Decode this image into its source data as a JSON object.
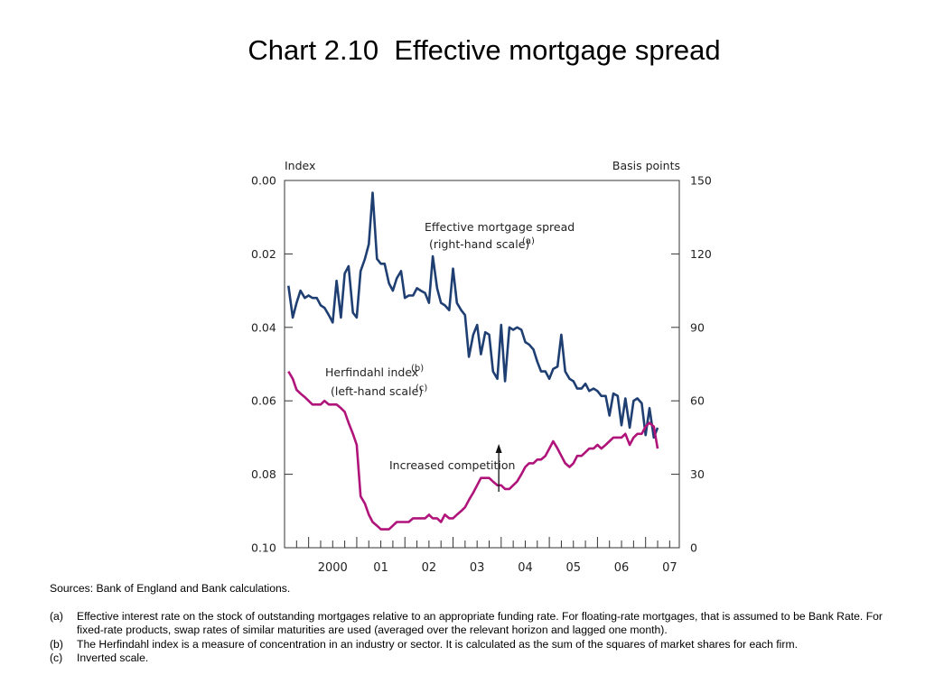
{
  "title": "Chart 2.10  Effective mortgage spread",
  "chart_data": {
    "type": "line",
    "left_axis": {
      "label": "Index",
      "range": [
        0.0,
        0.1
      ],
      "inverted": true,
      "ticks": [
        "0.00",
        "0.02",
        "0.04",
        "0.06",
        "0.08",
        "0.10"
      ]
    },
    "right_axis": {
      "label": "Basis points",
      "range": [
        0,
        150
      ],
      "ticks": [
        "150",
        "120",
        "90",
        "60",
        "30",
        "0"
      ]
    },
    "x_axis": {
      "range": [
        1999.5,
        2007.7
      ],
      "ticks": [
        "2000",
        "01",
        "02",
        "03",
        "04",
        "05",
        "06",
        "07"
      ]
    },
    "grid": false,
    "colors": {
      "spread": "#1f3f73",
      "herfindahl": "#b0147a"
    },
    "series": [
      {
        "name": "Effective mortgage spread (right-hand scale)(a)",
        "axis": "right",
        "x": [
          1999.58,
          1999.67,
          1999.75,
          1999.83,
          1999.92,
          2000.0,
          2000.08,
          2000.17,
          2000.25,
          2000.33,
          2000.42,
          2000.5,
          2000.58,
          2000.67,
          2000.75,
          2000.83,
          2000.92,
          2001.0,
          2001.08,
          2001.17,
          2001.25,
          2001.33,
          2001.42,
          2001.5,
          2001.58,
          2001.67,
          2001.75,
          2001.83,
          2001.92,
          2002.0,
          2002.08,
          2002.17,
          2002.25,
          2002.33,
          2002.42,
          2002.5,
          2002.58,
          2002.67,
          2002.75,
          2002.83,
          2002.92,
          2003.0,
          2003.08,
          2003.17,
          2003.25,
          2003.33,
          2003.42,
          2003.5,
          2003.58,
          2003.67,
          2003.75,
          2003.83,
          2003.92,
          2004.0,
          2004.08,
          2004.17,
          2004.25,
          2004.33,
          2004.42,
          2004.5,
          2004.58,
          2004.67,
          2004.75,
          2004.83,
          2004.92,
          2005.0,
          2005.08,
          2005.17,
          2005.25,
          2005.33,
          2005.42,
          2005.5,
          2005.58,
          2005.67,
          2005.75,
          2005.83,
          2005.92,
          2006.0,
          2006.08,
          2006.17,
          2006.25,
          2006.33,
          2006.42,
          2006.5,
          2006.58,
          2006.67,
          2006.75,
          2006.83,
          2006.92,
          2007.0,
          2007.08,
          2007.17,
          2007.25
        ],
        "values": [
          107,
          94,
          100,
          105,
          102,
          103,
          102,
          102,
          99,
          98,
          95,
          92,
          109,
          94,
          112,
          115,
          96,
          94,
          113,
          118,
          124,
          145,
          118,
          116,
          116,
          108,
          105,
          110,
          113,
          102,
          103,
          103,
          106,
          105,
          104,
          100,
          119,
          106,
          100,
          99,
          97,
          114,
          100,
          97,
          95,
          78,
          87,
          91,
          79,
          88,
          87,
          72,
          69,
          91,
          68,
          90,
          89,
          90,
          89,
          84,
          83,
          81,
          76,
          72,
          72,
          69,
          73,
          74,
          87,
          72,
          69,
          68,
          65,
          65,
          67,
          64,
          65,
          64,
          62,
          62,
          54,
          63,
          62,
          50,
          61,
          49,
          60,
          61,
          59,
          46,
          57,
          45,
          49
        ],
        "annotations": [
          "Effective mortgage spread",
          "(right-hand scale)",
          "(a)"
        ]
      },
      {
        "name": "Herfindahl index (left-hand scale)(c)",
        "axis": "left",
        "x": [
          1999.58,
          1999.67,
          1999.75,
          1999.83,
          1999.92,
          2000.0,
          2000.08,
          2000.17,
          2000.25,
          2000.33,
          2000.42,
          2000.5,
          2000.58,
          2000.67,
          2000.75,
          2000.83,
          2000.92,
          2001.0,
          2001.08,
          2001.17,
          2001.25,
          2001.33,
          2001.42,
          2001.5,
          2001.58,
          2001.67,
          2001.75,
          2001.83,
          2001.92,
          2002.0,
          2002.08,
          2002.17,
          2002.25,
          2002.33,
          2002.42,
          2002.5,
          2002.58,
          2002.67,
          2002.75,
          2002.83,
          2002.92,
          2003.0,
          2003.08,
          2003.17,
          2003.25,
          2003.33,
          2003.42,
          2003.5,
          2003.58,
          2003.67,
          2003.75,
          2003.83,
          2003.92,
          2004.0,
          2004.08,
          2004.17,
          2004.25,
          2004.33,
          2004.42,
          2004.5,
          2004.58,
          2004.67,
          2004.75,
          2004.83,
          2004.92,
          2005.0,
          2005.08,
          2005.17,
          2005.25,
          2005.33,
          2005.42,
          2005.5,
          2005.58,
          2005.67,
          2005.75,
          2005.83,
          2005.92,
          2006.0,
          2006.08,
          2006.17,
          2006.25,
          2006.33,
          2006.42,
          2006.5,
          2006.58,
          2006.67,
          2006.75,
          2006.83,
          2006.92,
          2007.0,
          2007.08,
          2007.17,
          2007.25
        ],
        "values": [
          0.052,
          0.054,
          0.057,
          0.058,
          0.059,
          0.06,
          0.061,
          0.061,
          0.061,
          0.06,
          0.061,
          0.061,
          0.061,
          0.062,
          0.063,
          0.066,
          0.069,
          0.072,
          0.086,
          0.088,
          0.091,
          0.093,
          0.094,
          0.095,
          0.095,
          0.095,
          0.094,
          0.093,
          0.093,
          0.093,
          0.093,
          0.092,
          0.092,
          0.092,
          0.092,
          0.091,
          0.092,
          0.092,
          0.093,
          0.091,
          0.092,
          0.092,
          0.091,
          0.09,
          0.089,
          0.087,
          0.085,
          0.083,
          0.081,
          0.081,
          0.081,
          0.082,
          0.083,
          0.083,
          0.084,
          0.084,
          0.083,
          0.082,
          0.08,
          0.078,
          0.077,
          0.077,
          0.076,
          0.076,
          0.075,
          0.073,
          0.071,
          0.073,
          0.075,
          0.077,
          0.078,
          0.077,
          0.075,
          0.075,
          0.074,
          0.073,
          0.073,
          0.072,
          0.073,
          0.072,
          0.071,
          0.07,
          0.07,
          0.07,
          0.069,
          0.072,
          0.07,
          0.069,
          0.069,
          0.067,
          0.066,
          0.067,
          0.073
        ],
        "annotations": [
          "Herfindahl index",
          "(b)",
          "(left-hand scale)",
          "(c)"
        ]
      }
    ],
    "callout": {
      "text": "Increased competition",
      "x": 2003.95
    }
  },
  "notes": {
    "sources": "Sources:  Bank of England and Bank calculations.",
    "items": [
      {
        "marker": "(a)",
        "text": "Effective interest rate on the stock of outstanding mortgages relative to an appropriate funding rate.  For floating-rate mortgages, that is assumed to be Bank Rate.  For fixed-rate products, swap rates of similar maturities are used (averaged over the relevant horizon and lagged one month)."
      },
      {
        "marker": "(b)",
        "text": "The Herfindahl index is a measure of concentration in an industry or sector.  It is calculated as the sum of the squares of market shares for each firm."
      },
      {
        "marker": "(c)",
        "text": "Inverted scale."
      }
    ]
  }
}
